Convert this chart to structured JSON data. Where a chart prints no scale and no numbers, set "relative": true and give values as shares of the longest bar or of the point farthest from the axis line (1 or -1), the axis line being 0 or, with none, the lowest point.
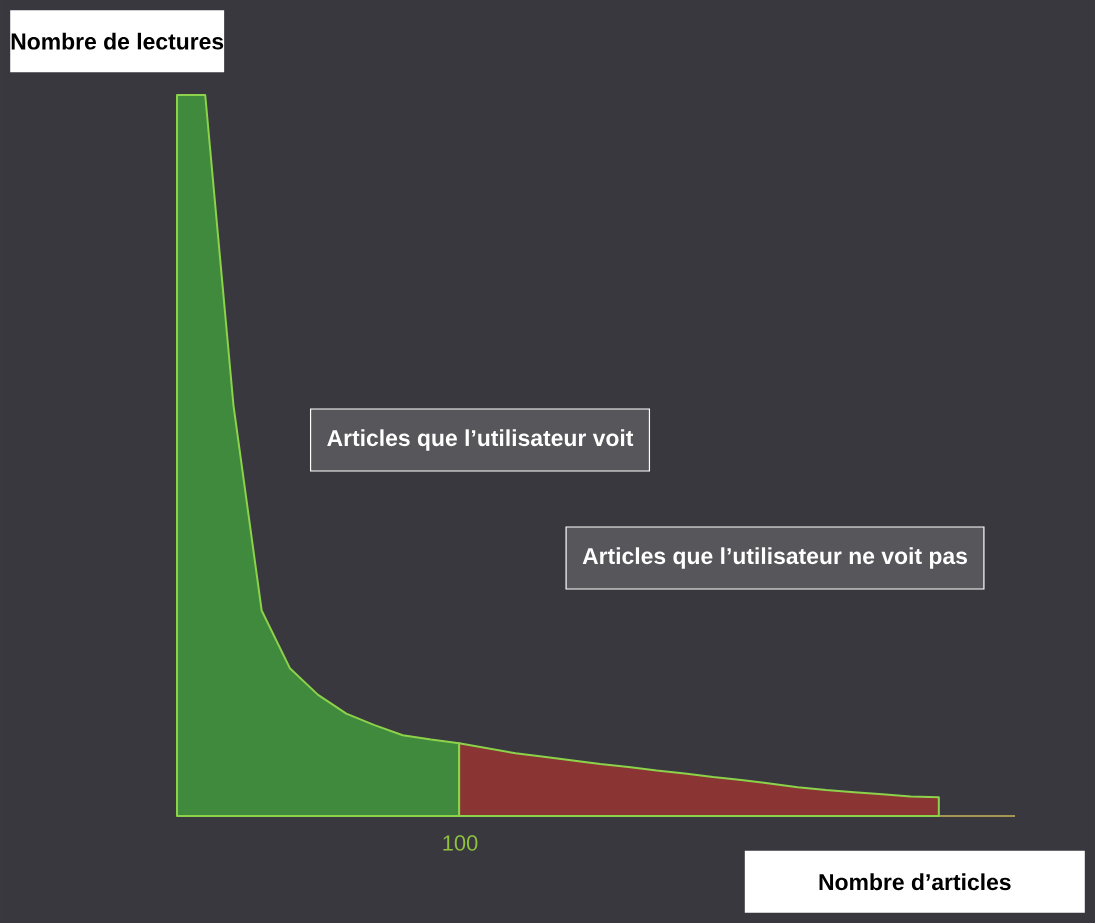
{
  "chart_data": {
    "type": "area",
    "relative": true,
    "xlabel": "Nombre d’articles",
    "ylabel": "Nombre de lectures",
    "categories": [
      null,
      null,
      null,
      null,
      null,
      null,
      null,
      null,
      null,
      null,
      null,
      null,
      null,
      null,
      null,
      null,
      null,
      null,
      null,
      null,
      null,
      null,
      null,
      null,
      null,
      null,
      null,
      null
    ],
    "series": [
      {
        "color": "#3f8a3c",
        "values": [
          1.0,
          1.0,
          0.57,
          0.285,
          0.205,
          0.168,
          0.142,
          0.126,
          0.112,
          0.106,
          0.101,
          null,
          null,
          null,
          null,
          null,
          null,
          null,
          null,
          null,
          null,
          null,
          null,
          null,
          null,
          null,
          null,
          null
        ]
      },
      {
        "color": "#8a3434",
        "values": [
          null,
          null,
          null,
          null,
          null,
          null,
          null,
          null,
          null,
          null,
          0.101,
          0.094,
          0.087,
          0.082,
          0.077,
          0.072,
          0.068,
          0.063,
          0.059,
          0.054,
          0.05,
          0.045,
          0.04,
          0.036,
          0.033,
          0.03,
          0.027,
          0.026
        ]
      }
    ],
    "annotations": [
      "Articles que l’utilisateur voit",
      "Articles que l’utilisateur ne voit pas",
      "100"
    ]
  }
}
